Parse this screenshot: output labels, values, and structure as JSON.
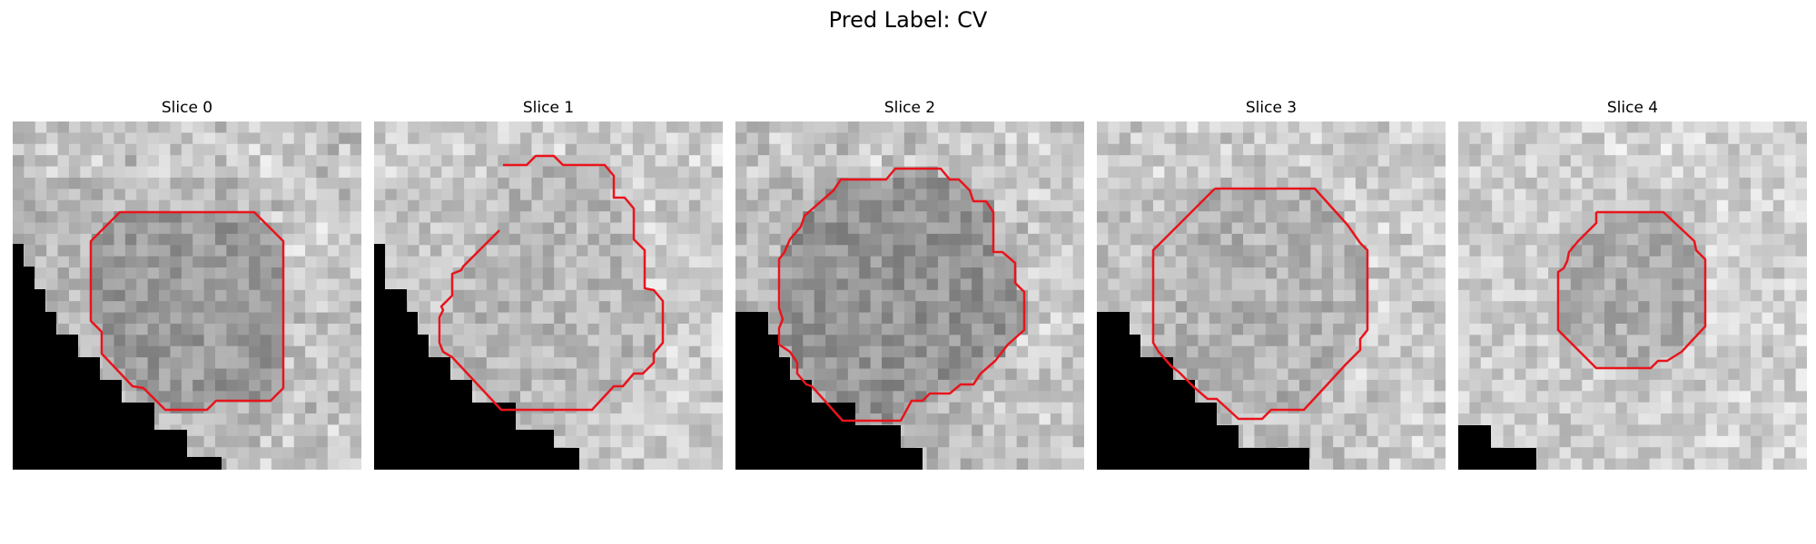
{
  "figure": {
    "title": "Pred Label: CV"
  },
  "panels": [
    {
      "title": "Slice 0",
      "seed": 11,
      "base": 0.72,
      "lesion_darkening": 0.12,
      "edge_bright": 0.12
    },
    {
      "title": "Slice 1",
      "seed": 23,
      "base": 0.77,
      "lesion_darkening": 0.05,
      "edge_bright": 0.08
    },
    {
      "title": "Slice 2",
      "seed": 37,
      "base": 0.72,
      "lesion_darkening": 0.14,
      "edge_bright": 0.12
    },
    {
      "title": "Slice 3",
      "seed": 41,
      "base": 0.76,
      "lesion_darkening": 0.06,
      "edge_bright": 0.08
    },
    {
      "title": "Slice 4",
      "seed": 59,
      "base": 0.8,
      "lesion_darkening": 0.12,
      "edge_bright": 0.06
    }
  ],
  "contour_color": "#e8141c"
}
